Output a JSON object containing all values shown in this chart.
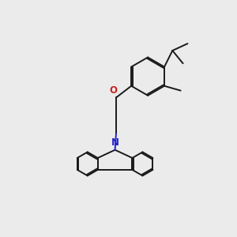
{
  "bg_color": "#ebebeb",
  "bond_color": "#1a1a1a",
  "N_color": "#2222cc",
  "O_color": "#cc2222",
  "bond_width": 1.4,
  "font_size": 8.5
}
